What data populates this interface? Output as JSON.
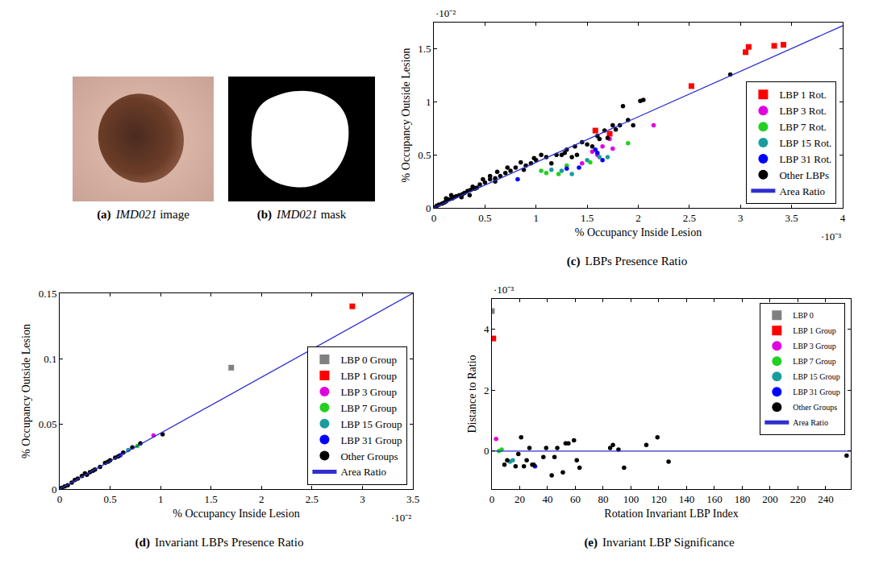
{
  "images": [
    {
      "panel": "(a)",
      "name": "IMD021",
      "caption": "image",
      "kind": "photo"
    },
    {
      "panel": "(b)",
      "name": "IMD021",
      "caption": "mask",
      "kind": "mask"
    }
  ],
  "chart_data": [
    {
      "panel": "(c)",
      "caption": "LBPs Presence Ratio",
      "type": "scatter",
      "x_label": "% Occupancy Inside Lesion",
      "y_label": "% Occupancy Outside Lesion",
      "x_exponent": "·10⁻³",
      "y_exponent": "·10⁻²",
      "xlim": [
        0,
        4
      ],
      "ylim": [
        0,
        1.75
      ],
      "xticks": [
        0,
        0.5,
        1,
        1.5,
        2,
        2.5,
        3,
        3.5,
        4
      ],
      "yticks": [
        0,
        0.5,
        1,
        1.5
      ],
      "legend": "lower right",
      "grid": false,
      "series": [
        {
          "name": "LBP 1 Rot.",
          "color": "#ff0000",
          "marker": "square",
          "x": [
            3.05,
            3.08,
            3.33,
            3.42,
            2.52,
            1.58,
            1.72
          ],
          "values": [
            1.47,
            1.52,
            1.53,
            1.54,
            1.15,
            0.73,
            0.7
          ]
        },
        {
          "name": "LBP 3 Rot.",
          "color": "#e000e0",
          "marker": "circle",
          "x": [
            2.15,
            1.72,
            1.75,
            1.55,
            1.6,
            1.45,
            1.65
          ],
          "values": [
            0.78,
            0.65,
            0.56,
            0.53,
            0.5,
            0.42,
            0.58
          ]
        },
        {
          "name": "LBP 7 Rot.",
          "color": "#22d022",
          "marker": "circle",
          "x": [
            1.9,
            1.53,
            1.22,
            1.05,
            1.3,
            1.1
          ],
          "values": [
            0.61,
            0.43,
            0.32,
            0.35,
            0.4,
            0.33
          ]
        },
        {
          "name": "LBP 15 Rot.",
          "color": "#1a9c9c",
          "marker": "circle",
          "x": [
            1.15,
            1.35,
            1.62,
            1.5,
            1.25,
            1.7
          ],
          "values": [
            0.36,
            0.32,
            0.48,
            0.45,
            0.35,
            0.48
          ]
        },
        {
          "name": "LBP 31 Rot.",
          "color": "#0000ff",
          "marker": "circle",
          "x": [
            0.82,
            1.42,
            1.58,
            1.6,
            1.65,
            1.3
          ],
          "values": [
            0.27,
            0.38,
            0.55,
            0.52,
            0.45,
            0.37
          ]
        },
        {
          "name": "Other LBPs",
          "color": "#000000",
          "marker": "circle",
          "x": [
            2.9,
            2.05,
            2.02,
            1.9,
            1.82,
            1.75,
            1.67,
            1.85,
            1.62,
            1.5,
            1.45,
            1.38,
            1.3,
            1.2,
            1.25,
            1.1,
            1.0,
            0.95,
            0.9,
            0.85,
            0.8,
            0.75,
            0.7,
            0.65,
            0.6,
            0.55,
            0.5,
            0.45,
            0.42,
            0.4,
            0.36,
            0.33,
            0.3,
            0.28,
            0.25,
            0.22,
            0.2,
            0.18,
            0.15,
            0.12,
            0.1,
            0.08,
            0.05,
            0.03,
            0.02,
            0.35,
            0.38,
            0.55,
            0.6,
            0.72,
            0.88,
            0.98,
            1.05,
            1.15,
            1.35,
            1.55,
            1.7,
            1.78,
            1.95,
            0.62,
            0.48,
            0.27,
            0.17,
            0.12,
            1.4,
            1.28,
            1.6
          ],
          "values": [
            1.26,
            1.02,
            1.01,
            0.83,
            0.78,
            0.78,
            0.73,
            0.96,
            0.65,
            0.6,
            0.62,
            0.58,
            0.55,
            0.5,
            0.5,
            0.48,
            0.45,
            0.42,
            0.4,
            0.43,
            0.38,
            0.35,
            0.33,
            0.3,
            0.28,
            0.27,
            0.24,
            0.22,
            0.19,
            0.18,
            0.17,
            0.16,
            0.14,
            0.13,
            0.12,
            0.11,
            0.1,
            0.09,
            0.08,
            0.06,
            0.05,
            0.04,
            0.03,
            0.02,
            0.01,
            0.12,
            0.2,
            0.3,
            0.25,
            0.38,
            0.36,
            0.47,
            0.5,
            0.42,
            0.48,
            0.58,
            0.66,
            0.74,
            0.78,
            0.34,
            0.27,
            0.1,
            0.12,
            0.09,
            0.5,
            0.52,
            0.68
          ]
        },
        {
          "name": "Area Ratio",
          "type": "line",
          "color": "#2f2fd0",
          "line_style": "solid",
          "x": [
            0,
            4
          ],
          "values": [
            0,
            1.72
          ]
        }
      ]
    },
    {
      "panel": "(d)",
      "caption": "Invariant LBPs Presence Ratio",
      "type": "scatter",
      "x_label": "% Occupancy Inside Lesion",
      "y_label": "% Occupancy Outside Lesion",
      "x_exponent": "·10⁻²",
      "xlim": [
        0,
        3.5
      ],
      "ylim": [
        0,
        0.15
      ],
      "xticks": [
        0,
        0.5,
        1,
        1.5,
        2,
        2.5,
        3,
        3.5
      ],
      "yticks": [
        0,
        0.05,
        0.1,
        0.15
      ],
      "legend": "lower right",
      "grid": false,
      "series": [
        {
          "name": "LBP 0 Group",
          "color": "#808080",
          "marker": "square",
          "x": [
            1.7
          ],
          "values": [
            0.093
          ]
        },
        {
          "name": "LBP 1 Group",
          "color": "#ff0000",
          "marker": "square",
          "x": [
            2.9
          ],
          "values": [
            0.14
          ]
        },
        {
          "name": "LBP 3 Group",
          "color": "#e000e0",
          "marker": "circle",
          "x": [
            0.93
          ],
          "values": [
            0.041
          ]
        },
        {
          "name": "LBP 7 Group",
          "color": "#22d022",
          "marker": "circle",
          "x": [
            0.77
          ],
          "values": [
            0.033
          ]
        },
        {
          "name": "LBP 15 Group",
          "color": "#1a9c9c",
          "marker": "circle",
          "x": [
            0.68
          ],
          "values": [
            0.03
          ]
        },
        {
          "name": "LBP 31 Group",
          "color": "#0000ff",
          "marker": "circle",
          "x": [
            0.6
          ],
          "values": [
            0.026
          ]
        },
        {
          "name": "Other Groups",
          "color": "#000000",
          "marker": "circle",
          "x": [
            1.02,
            0.8,
            0.72,
            0.63,
            0.55,
            0.5,
            0.45,
            0.4,
            0.35,
            0.3,
            0.27,
            0.22,
            0.18,
            0.15,
            0.12,
            0.08,
            0.05,
            0.02,
            0.33,
            0.25,
            0.58,
            0.48
          ],
          "values": [
            0.042,
            0.035,
            0.032,
            0.028,
            0.024,
            0.022,
            0.02,
            0.017,
            0.015,
            0.013,
            0.011,
            0.01,
            0.008,
            0.007,
            0.005,
            0.003,
            0.002,
            0.001,
            0.014,
            0.012,
            0.025,
            0.021
          ]
        },
        {
          "name": "Area Ratio",
          "type": "line",
          "color": "#2f2fd0",
          "line_style": "solid",
          "x": [
            0,
            3.5
          ],
          "values": [
            0,
            0.15
          ]
        }
      ]
    },
    {
      "panel": "(e)",
      "caption": "Invariant LBP Significance",
      "type": "scatter",
      "x_label": "Rotation Invariant LBP Index",
      "y_label": "Distance to Ratio",
      "y_exponent": "·10⁻³",
      "xlim": [
        0,
        258
      ],
      "ylim": [
        -1.25,
        5
      ],
      "xticks": [
        0,
        20,
        40,
        60,
        80,
        100,
        120,
        140,
        160,
        180,
        200,
        220,
        240
      ],
      "yticks": [
        0,
        2,
        4
      ],
      "legend": "upper right",
      "grid": false,
      "series": [
        {
          "name": "LBP 0",
          "color": "#808080",
          "marker": "square",
          "x": [
            0
          ],
          "values": [
            4.6
          ]
        },
        {
          "name": "LBP 1 Group",
          "color": "#ff0000",
          "marker": "square",
          "x": [
            1
          ],
          "values": [
            3.7
          ]
        },
        {
          "name": "LBP 3 Group",
          "color": "#e000e0",
          "marker": "circle",
          "x": [
            3
          ],
          "values": [
            0.4
          ]
        },
        {
          "name": "LBP 7 Group",
          "color": "#22d022",
          "marker": "circle",
          "x": [
            5,
            7
          ],
          "values": [
            0.0,
            0.05
          ]
        },
        {
          "name": "LBP 15 Group",
          "color": "#1a9c9c",
          "marker": "circle",
          "x": [
            13,
            15
          ],
          "values": [
            -0.35,
            -0.3
          ]
        },
        {
          "name": "LBP 31 Group",
          "color": "#0000ff",
          "marker": "circle",
          "x": [
            31
          ],
          "values": [
            -0.5
          ]
        },
        {
          "name": "Other Groups",
          "color": "#000000",
          "marker": "circle",
          "x": [
            9,
            11,
            17,
            19,
            21,
            23,
            25,
            27,
            29,
            30,
            37,
            39,
            43,
            45,
            47,
            51,
            53,
            55,
            59,
            61,
            63,
            85,
            87,
            91,
            95,
            111,
            119,
            127,
            255
          ],
          "values": [
            -0.45,
            -0.3,
            -0.5,
            -0.1,
            0.45,
            -0.5,
            -0.3,
            0.1,
            -0.45,
            -0.45,
            -0.2,
            0.1,
            -0.8,
            -0.2,
            0.1,
            -0.7,
            0.25,
            0.25,
            0.35,
            -0.3,
            -0.55,
            0.1,
            0.2,
            0.05,
            -0.55,
            0.2,
            0.45,
            -0.35,
            -0.15
          ]
        },
        {
          "name": "Area Ratio",
          "type": "line",
          "color": "#2f2fd0",
          "line_style": "solid",
          "x": [
            0,
            258
          ],
          "values": [
            0,
            0
          ]
        }
      ]
    }
  ]
}
